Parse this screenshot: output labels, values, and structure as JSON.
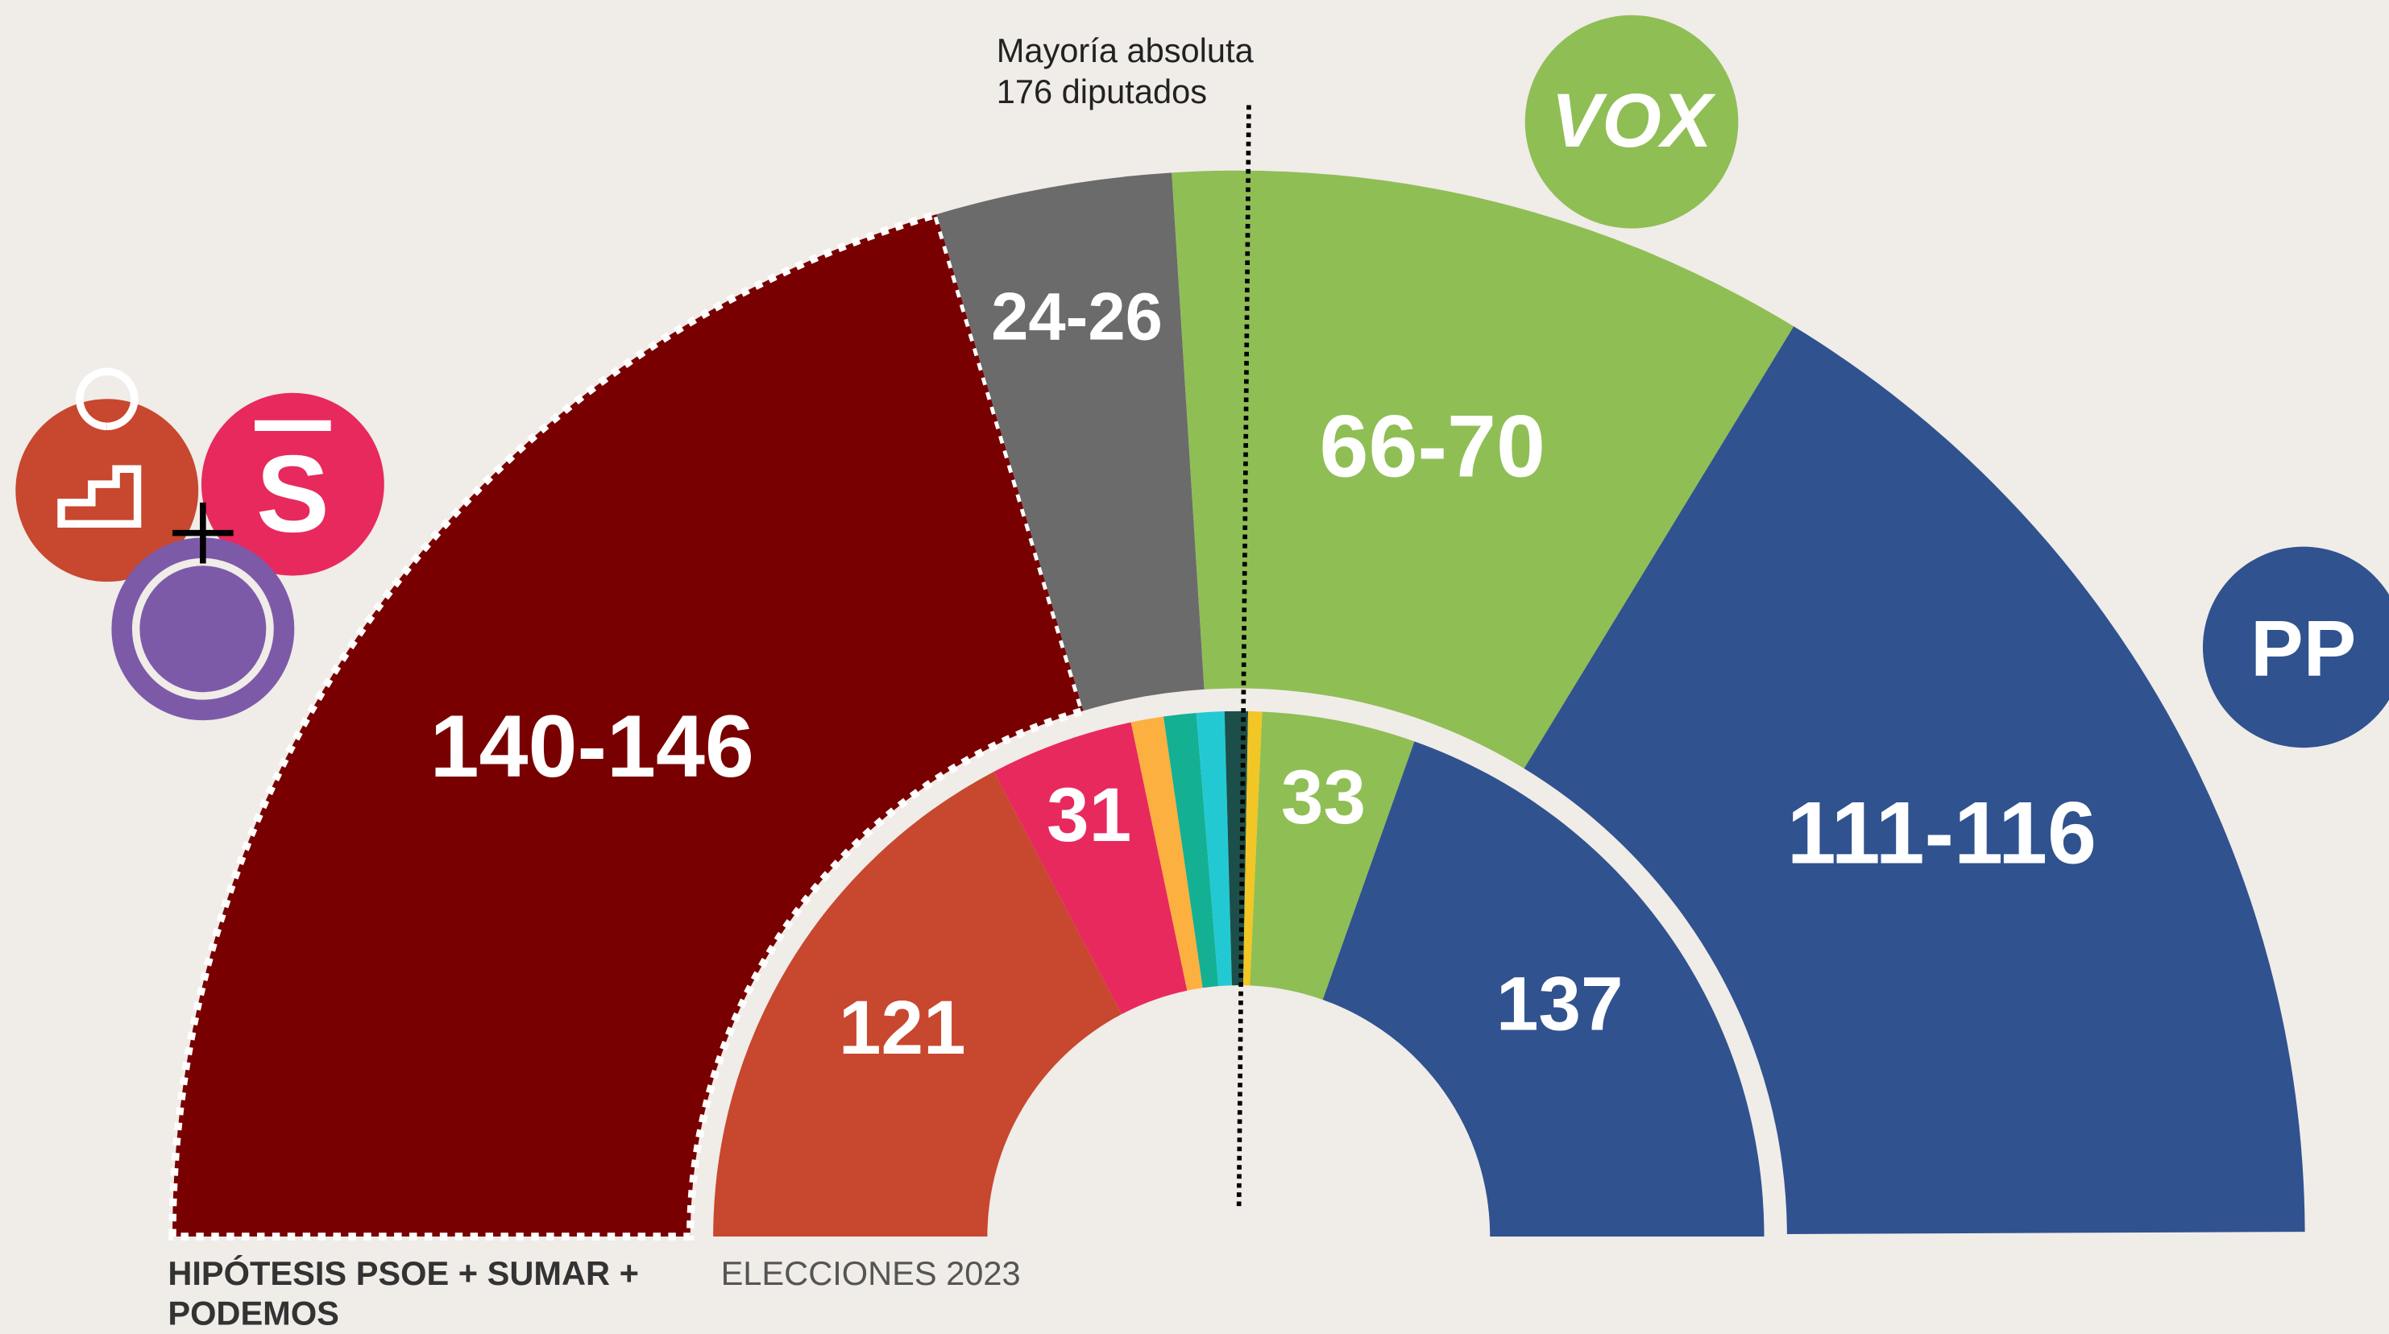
{
  "chart_data": {
    "type": "hemicycle",
    "lim": [
      0,
      350
    ],
    "outer": {
      "low": [
        140,
        24,
        66,
        111
      ],
      "high": [
        146,
        26,
        70,
        116
      ],
      "value_labels": [
        "140-146",
        "24-26",
        "66-70",
        "111-116"
      ],
      "colors": [
        "#780000",
        "#6b6b6b",
        "#8fbe55",
        "#30528f"
      ],
      "dotted_outline": [
        true,
        false,
        false,
        false
      ],
      "caption": [
        "HIPÓTESIS PSOE + SUMAR +",
        "PODEMOS"
      ]
    },
    "inner": {
      "values": [
        121,
        31,
        7,
        7,
        6,
        5,
        3,
        33,
        137
      ],
      "colors": [
        "#c8472f",
        "#e8295e",
        "#fbb040",
        "#14b093",
        "#22c9d3",
        "#1d4f4a",
        "#f2c624",
        "#8fbe55",
        "#30528f"
      ],
      "labeled": [
        true,
        true,
        false,
        false,
        false,
        false,
        false,
        true,
        true
      ],
      "caption": "ELECCIONES 2023"
    },
    "majority": {
      "value": 176,
      "label": [
        "Mayoría absoluta",
        "176 diputados"
      ]
    },
    "logos": {
      "sumar": "S",
      "vox": "VOX",
      "pp": "PP"
    }
  }
}
